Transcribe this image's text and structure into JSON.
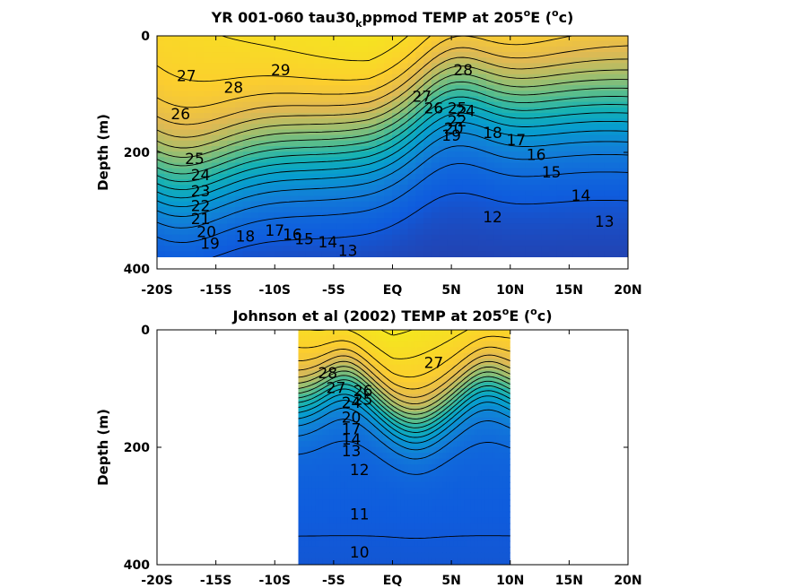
{
  "chart_data": [
    {
      "type": "contour",
      "title": "YR 001-060 tau30",
      "title_sub": "k",
      "title_rest": "ppmod TEMP at 205",
      "title_unit_deg": "o",
      "title_tail": "E (",
      "title_unit": "c)",
      "ylabel": "Depth (m)",
      "x_ticks": [
        "-20S",
        "-15S",
        "-10S",
        "-5S",
        "EQ",
        "5N",
        "10N",
        "15N",
        "20N"
      ],
      "x_values": [
        -20,
        -15,
        -10,
        -5,
        0,
        5,
        10,
        15,
        20
      ],
      "y_ticks": [
        "0",
        "200",
        "400"
      ],
      "y_values": [
        0,
        200,
        400
      ],
      "xlim": [
        -20,
        20
      ],
      "ylim": [
        400,
        0
      ],
      "data_xlim": [
        -20,
        20
      ],
      "data_ylim": [
        0,
        380
      ],
      "colormap": "parula",
      "clim": [
        9,
        30
      ],
      "contour_labels": [
        {
          "text": "29",
          "x": -9.5,
          "y": 60
        },
        {
          "text": "28",
          "x": -13.5,
          "y": 90
        },
        {
          "text": "27",
          "x": -17.5,
          "y": 70
        },
        {
          "text": "26",
          "x": -18,
          "y": 135
        },
        {
          "text": "28",
          "x": 6,
          "y": 60
        },
        {
          "text": "27",
          "x": 2.5,
          "y": 105
        },
        {
          "text": "26",
          "x": 3.5,
          "y": 125
        },
        {
          "text": "25",
          "x": 5.5,
          "y": 125
        },
        {
          "text": "24",
          "x": 6.2,
          "y": 130
        },
        {
          "text": "22",
          "x": 5.5,
          "y": 148
        },
        {
          "text": "20",
          "x": 5.2,
          "y": 160
        },
        {
          "text": "19",
          "x": 5,
          "y": 172
        },
        {
          "text": "18",
          "x": 8.5,
          "y": 168
        },
        {
          "text": "17",
          "x": 10.5,
          "y": 180
        },
        {
          "text": "16",
          "x": 12.2,
          "y": 205
        },
        {
          "text": "15",
          "x": 13.5,
          "y": 235
        },
        {
          "text": "14",
          "x": 16,
          "y": 275
        },
        {
          "text": "13",
          "x": 18,
          "y": 320
        },
        {
          "text": "12",
          "x": 8.5,
          "y": 312
        },
        {
          "text": "25",
          "x": -16.8,
          "y": 212
        },
        {
          "text": "24",
          "x": -16.3,
          "y": 240
        },
        {
          "text": "23",
          "x": -16.3,
          "y": 268
        },
        {
          "text": "22",
          "x": -16.3,
          "y": 293
        },
        {
          "text": "21",
          "x": -16.3,
          "y": 315
        },
        {
          "text": "20",
          "x": -15.8,
          "y": 338
        },
        {
          "text": "19",
          "x": -15.5,
          "y": 358
        },
        {
          "text": "18",
          "x": -12.5,
          "y": 345
        },
        {
          "text": "17",
          "x": -10,
          "y": 335
        },
        {
          "text": "16",
          "x": -8.5,
          "y": 342
        },
        {
          "text": "15",
          "x": -7.5,
          "y": 350
        },
        {
          "text": "14",
          "x": -5.5,
          "y": 355
        },
        {
          "text": "13",
          "x": -3.8,
          "y": 370
        }
      ]
    },
    {
      "type": "contour",
      "title": "Johnson et al (2002) TEMP at 205",
      "title_unit_deg": "o",
      "title_tail": "E (",
      "title_unit": "c)",
      "ylabel": "Depth (m)",
      "x_ticks": [
        "-20S",
        "-15S",
        "-10S",
        "-5S",
        "EQ",
        "5N",
        "10N",
        "15N",
        "20N"
      ],
      "x_values": [
        -20,
        -15,
        -10,
        -5,
        0,
        5,
        10,
        15,
        20
      ],
      "y_ticks": [
        "0",
        "200",
        "400"
      ],
      "y_values": [
        0,
        200,
        400
      ],
      "xlim": [
        -20,
        20
      ],
      "ylim": [
        400,
        0
      ],
      "data_xlim": [
        -8,
        10
      ],
      "data_ylim": [
        0,
        400
      ],
      "colormap": "parula",
      "clim": [
        9,
        30
      ],
      "contour_labels": [
        {
          "text": "28",
          "x": -5.5,
          "y": 75
        },
        {
          "text": "27",
          "x": -4.8,
          "y": 100
        },
        {
          "text": "26",
          "x": -2.5,
          "y": 105
        },
        {
          "text": "25",
          "x": -2.5,
          "y": 120
        },
        {
          "text": "24",
          "x": -3.5,
          "y": 125
        },
        {
          "text": "27",
          "x": 3.5,
          "y": 57
        },
        {
          "text": "20",
          "x": -3.5,
          "y": 150
        },
        {
          "text": "17",
          "x": -3.5,
          "y": 170
        },
        {
          "text": "14",
          "x": -3.5,
          "y": 188
        },
        {
          "text": "13",
          "x": -3.5,
          "y": 208
        },
        {
          "text": "12",
          "x": -2.8,
          "y": 240
        },
        {
          "text": "11",
          "x": -2.8,
          "y": 315
        },
        {
          "text": "10",
          "x": -2.8,
          "y": 380
        }
      ]
    }
  ]
}
